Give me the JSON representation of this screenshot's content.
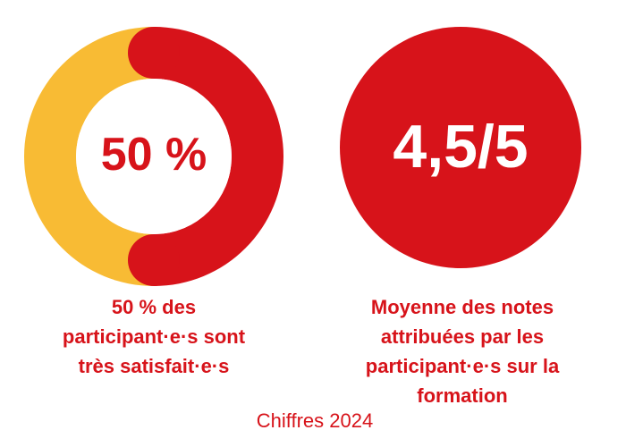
{
  "chart_data": [
    {
      "type": "pie",
      "variant": "donut",
      "center_label": "50 %",
      "caption_lines": [
        "50 % des",
        "participant·e·s sont",
        "très satisfait·e·s"
      ],
      "slices": [
        {
          "value": 50,
          "color": "#d7131a"
        },
        {
          "value": 50,
          "color": "#f8bb34"
        }
      ]
    },
    {
      "type": "table",
      "display": "score-circle",
      "value_label": "4,5/5",
      "value": 4.5,
      "max": 5,
      "caption_lines": [
        "Moyenne des notes",
        "attribuées par les",
        "participant·e·s sur la",
        "formation"
      ],
      "color": "#d7131a"
    }
  ],
  "footer": {
    "text": "Chiffres 2024"
  },
  "colors": {
    "red": "#d7131a",
    "yellow": "#f8bb34",
    "background": "#ffffff"
  }
}
